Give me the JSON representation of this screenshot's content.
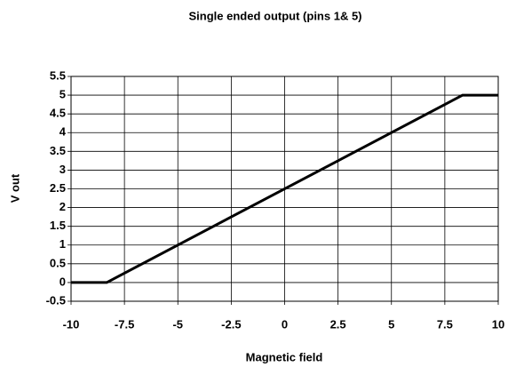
{
  "chart_data": {
    "type": "line",
    "title": "Single ended output (pins 1& 5)",
    "x_label": "Magnetic field",
    "y_label": "V out",
    "x": [
      -10,
      -8.33,
      8.33,
      10
    ],
    "series": [
      {
        "name": "V out",
        "color": "#000000",
        "values": [
          0,
          0,
          5,
          5
        ]
      }
    ],
    "xlim": [
      -10,
      10
    ],
    "xticks": [
      -10,
      -7.5,
      -5,
      -2.5,
      0,
      2.5,
      5,
      7.5,
      10
    ],
    "ylim": [
      -0.5,
      5.5
    ],
    "yticks": [
      -0.5,
      0,
      0.5,
      1,
      1.5,
      2,
      2.5,
      3,
      3.5,
      4,
      4.5,
      5,
      5.5
    ],
    "grid": true
  }
}
